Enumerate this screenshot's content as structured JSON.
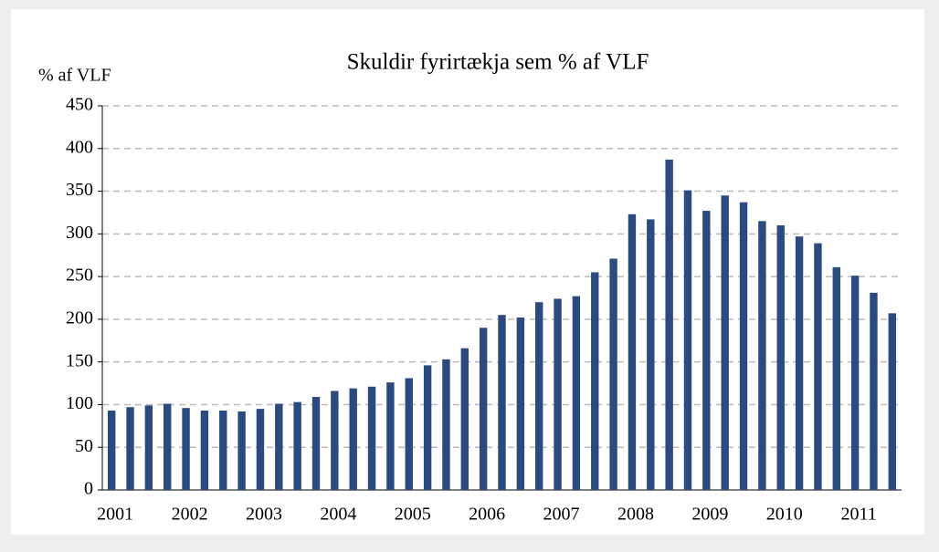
{
  "chart_data": {
    "type": "bar",
    "title": "Skuldir fyrirtækja sem % af VLF",
    "y_label": "% af VLF",
    "categories": [
      "2001",
      null,
      null,
      null,
      "2002",
      null,
      null,
      null,
      "2003",
      null,
      null,
      null,
      "2004",
      null,
      null,
      null,
      "2005",
      null,
      null,
      null,
      "2006",
      null,
      null,
      null,
      "2007",
      null,
      null,
      null,
      "2008",
      null,
      null,
      null,
      "2009",
      null,
      null,
      null,
      "2010",
      null,
      null,
      null,
      "2011",
      null,
      null
    ],
    "values": [
      93,
      97,
      99,
      101,
      96,
      93,
      93,
      92,
      95,
      101,
      103,
      109,
      116,
      119,
      121,
      126,
      131,
      146,
      153,
      166,
      190,
      205,
      202,
      220,
      224,
      227,
      255,
      271,
      323,
      317,
      387,
      351,
      327,
      345,
      337,
      315,
      310,
      297,
      289,
      261,
      251,
      231,
      207
    ],
    "color": "#2b4a7e",
    "ylim": [
      0,
      450
    ],
    "yticks": [
      0,
      50,
      100,
      150,
      200,
      250,
      300,
      350,
      400,
      450
    ],
    "grid": true
  }
}
